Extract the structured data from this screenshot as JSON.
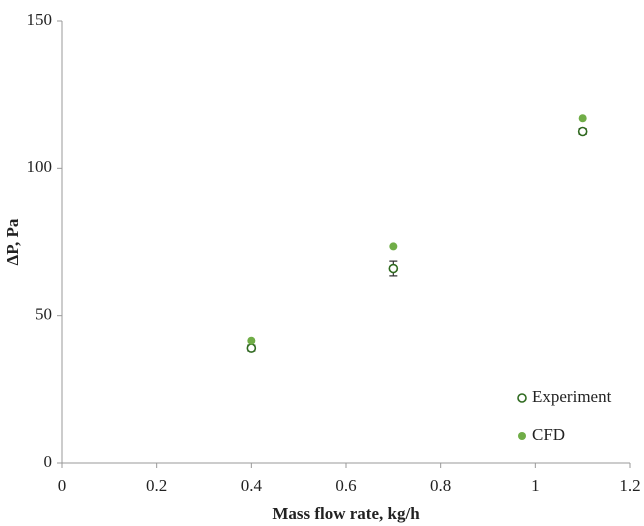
{
  "chart_data": {
    "type": "scatter",
    "x_label": "Mass flow rate, kg/h",
    "y_label": "ΔP, Pa",
    "xlim": [
      0,
      1.2
    ],
    "xticks": [
      0,
      0.2,
      0.4,
      0.6,
      0.8,
      1,
      1.2
    ],
    "ylim": [
      0,
      150
    ],
    "yticks": [
      0,
      50,
      100,
      150
    ],
    "grid": false,
    "legend": "lower right",
    "series": [
      {
        "name": "Experiment",
        "color": "#2f6a1f",
        "marker": "open",
        "x": [
          0.4,
          0.7,
          1.1
        ],
        "values": [
          39,
          66,
          112.5
        ],
        "errors": [
          1,
          2.5,
          1
        ]
      },
      {
        "name": "CFD",
        "color": "#70ad47",
        "marker": "filled",
        "x": [
          0.4,
          0.7,
          1.1
        ],
        "values": [
          41.5,
          73.5,
          117
        ]
      }
    ]
  }
}
